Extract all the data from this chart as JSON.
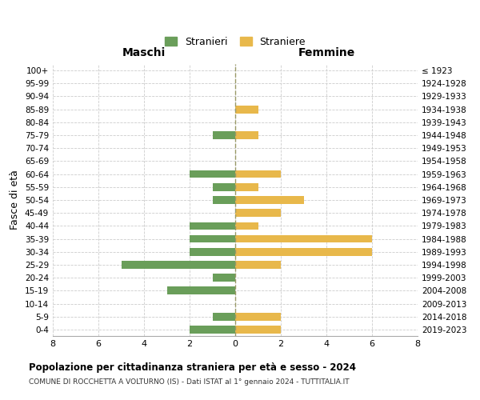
{
  "age_groups": [
    "100+",
    "95-99",
    "90-94",
    "85-89",
    "80-84",
    "75-79",
    "70-74",
    "65-69",
    "60-64",
    "55-59",
    "50-54",
    "45-49",
    "40-44",
    "35-39",
    "30-34",
    "25-29",
    "20-24",
    "15-19",
    "10-14",
    "5-9",
    "0-4"
  ],
  "birth_years": [
    "≤ 1923",
    "1924-1928",
    "1929-1933",
    "1934-1938",
    "1939-1943",
    "1944-1948",
    "1949-1953",
    "1954-1958",
    "1959-1963",
    "1964-1968",
    "1969-1973",
    "1974-1978",
    "1979-1983",
    "1984-1988",
    "1989-1993",
    "1994-1998",
    "1999-2003",
    "2004-2008",
    "2009-2013",
    "2014-2018",
    "2019-2023"
  ],
  "stranieri": [
    0,
    0,
    0,
    0,
    0,
    1,
    0,
    0,
    2,
    1,
    1,
    0,
    2,
    2,
    2,
    5,
    1,
    3,
    0,
    1,
    2
  ],
  "straniere": [
    0,
    0,
    0,
    1,
    0,
    1,
    0,
    0,
    2,
    1,
    3,
    2,
    1,
    6,
    6,
    2,
    0,
    0,
    0,
    2,
    2
  ],
  "color_stranieri": "#6a9e5a",
  "color_straniere": "#e8b84b",
  "title": "Popolazione per cittadinanza straniera per età e sesso - 2024",
  "subtitle": "COMUNE DI ROCCHETTA A VOLTURNO (IS) - Dati ISTAT al 1° gennaio 2024 - TUTTITALIA.IT",
  "xlabel_left": "Maschi",
  "xlabel_right": "Femmine",
  "ylabel_left": "Fasce di età",
  "legend_stranieri": "Stranieri",
  "legend_straniere": "Straniere",
  "xlim": 8,
  "background_color": "#ffffff",
  "grid_color": "#cccccc"
}
